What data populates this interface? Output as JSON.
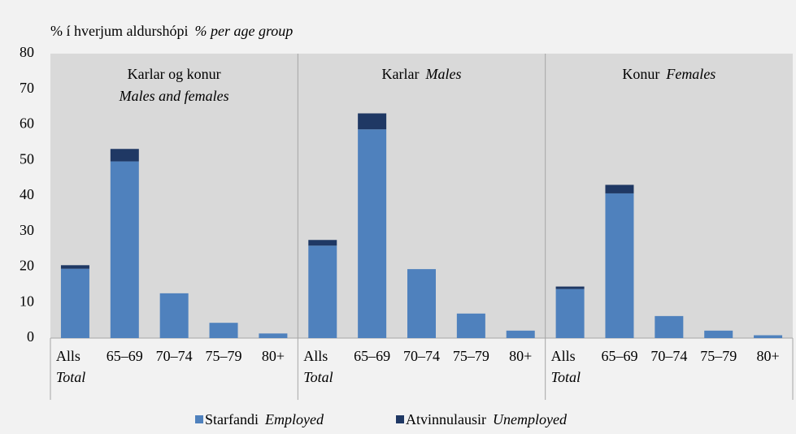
{
  "chart_data": {
    "type": "bar",
    "stacked": true,
    "ylabel": "% í hverjum aldurshópi",
    "ylabel_en": "% per age group",
    "ylim": [
      0,
      80
    ],
    "yticks": [
      0,
      10,
      20,
      30,
      40,
      50,
      60,
      70,
      80
    ],
    "grid": false,
    "groups": [
      {
        "title": "Karlar og konur",
        "subtitle": "Males and females"
      },
      {
        "title": "Karlar",
        "subtitle": "Males"
      },
      {
        "title": "Konur",
        "subtitle": "Females"
      }
    ],
    "categories": [
      "Alls",
      "65–69",
      "70–74",
      "75–79",
      "80+",
      "Alls",
      "65–69",
      "70–74",
      "75–79",
      "80+",
      "Alls",
      "65–69",
      "70–74",
      "75–79",
      "80+"
    ],
    "category_notes": [
      "Total",
      null,
      null,
      null,
      null,
      "Total",
      null,
      null,
      null,
      null,
      "Total",
      null,
      null,
      null,
      null
    ],
    "series": [
      {
        "name": "Starfandi",
        "name_en": "Employed",
        "color": "#4f81bd",
        "values": [
          19.5,
          49.7,
          12.6,
          4.3,
          1.3,
          26.0,
          58.7,
          19.4,
          6.9,
          2.1,
          13.8,
          40.7,
          6.2,
          2.1,
          0.8
        ]
      },
      {
        "name": "Atvinnulausir",
        "name_en": "Unemployed",
        "color": "#1f3864",
        "values": [
          1.0,
          3.5,
          0,
          0,
          0,
          1.6,
          4.5,
          0,
          0,
          0,
          0.7,
          2.4,
          0,
          0,
          0
        ]
      }
    ]
  }
}
